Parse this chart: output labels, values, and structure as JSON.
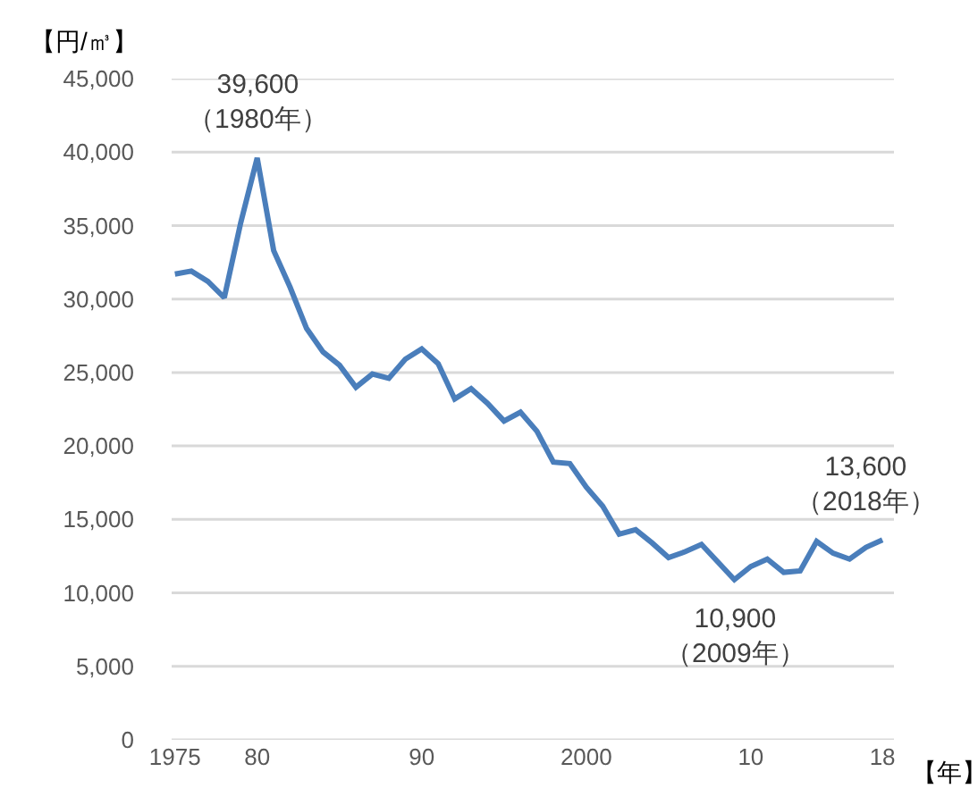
{
  "chart_data": {
    "type": "line",
    "ylabel": "【円/㎥】",
    "xlabel": "【年】",
    "x": [
      1975,
      1976,
      1977,
      1978,
      1979,
      1980,
      1981,
      1982,
      1983,
      1984,
      1985,
      1986,
      1987,
      1988,
      1989,
      1990,
      1991,
      1992,
      1993,
      1994,
      1995,
      1996,
      1997,
      1998,
      1999,
      2000,
      2001,
      2002,
      2003,
      2004,
      2005,
      2006,
      2007,
      2008,
      2009,
      2010,
      2011,
      2012,
      2013,
      2014,
      2015,
      2016,
      2017,
      2018
    ],
    "series": [
      {
        "color": "#4a7ebb",
        "values": [
          31700,
          31900,
          31200,
          30100,
          35200,
          39600,
          33300,
          30800,
          28000,
          26400,
          25500,
          24000,
          24900,
          24600,
          25900,
          26600,
          25600,
          23200,
          23900,
          22900,
          21700,
          22300,
          21000,
          18900,
          18800,
          17200,
          15900,
          14000,
          14300,
          13400,
          12400,
          12800,
          13300,
          12100,
          10900,
          11800,
          12300,
          11400,
          11500,
          13500,
          12700,
          12300,
          13100,
          13600
        ]
      }
    ],
    "xlim": [
      1974.8,
      2018.7
    ],
    "xticks": [
      {
        "value": 1975,
        "label": "1975"
      },
      {
        "value": 1980,
        "label": "80"
      },
      {
        "value": 1990,
        "label": "90"
      },
      {
        "value": 2000,
        "label": "2000"
      },
      {
        "value": 2010,
        "label": "10"
      },
      {
        "value": 2018,
        "label": "18"
      }
    ],
    "ylim": [
      0,
      45000
    ],
    "yticks": [
      0,
      {
        "value": 5000,
        "label": "5,000"
      },
      {
        "value": 10000,
        "label": "10,000"
      },
      {
        "value": 15000,
        "label": "15,000"
      },
      {
        "value": 20000,
        "label": "20,000"
      },
      {
        "value": 25000,
        "label": "25,000"
      },
      {
        "value": 30000,
        "label": "30,000"
      },
      {
        "value": 35000,
        "label": "35,000"
      },
      {
        "value": 40000,
        "label": "40,000"
      },
      {
        "value": 45000,
        "label": "45,000"
      }
    ],
    "grid": "y",
    "marker": "none",
    "line_style": "solid",
    "annotations": [
      {
        "text": "39,600\n（1980年）",
        "x": 1980,
        "y": 39600
      },
      {
        "text": "10,900\n（2009年）",
        "x": 2009,
        "y": 10900
      },
      {
        "text": "13,600\n（2018年）",
        "x": 2018,
        "y": 13600
      }
    ]
  }
}
